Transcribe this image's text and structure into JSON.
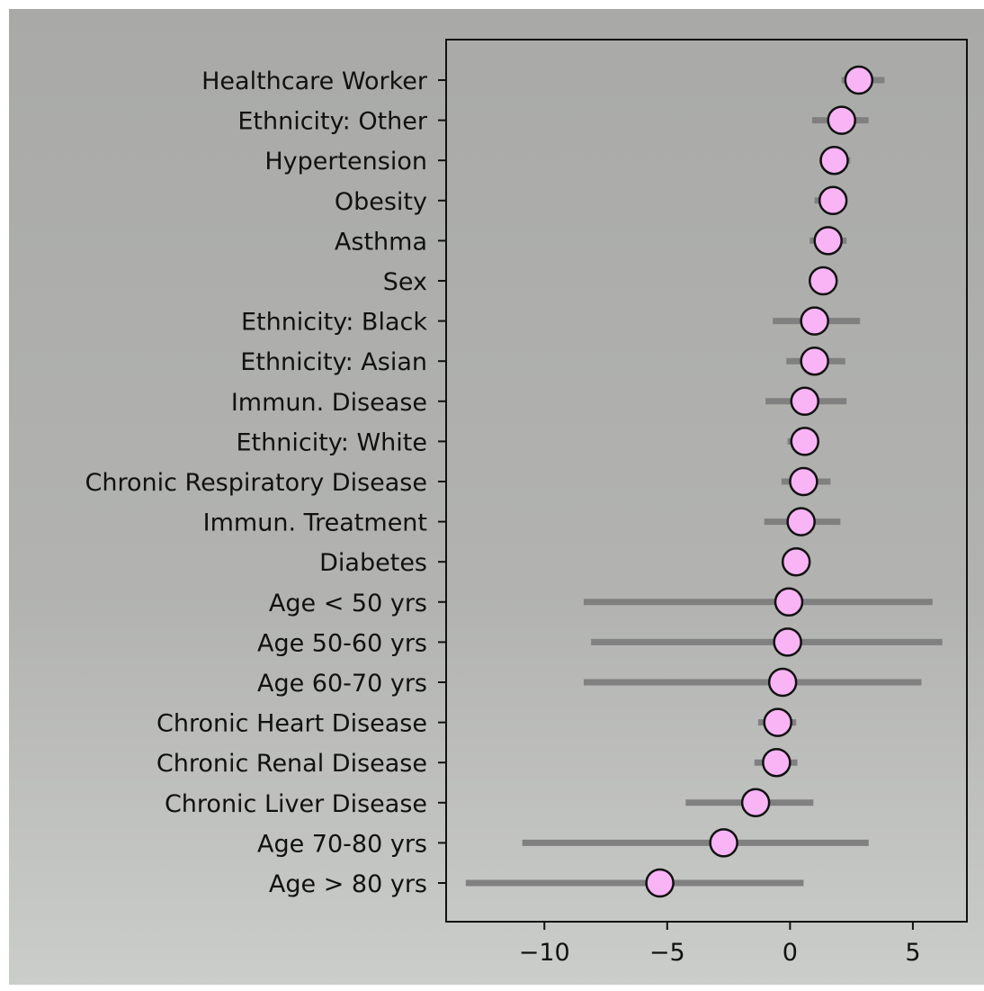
{
  "chart_data": {
    "type": "scatter",
    "title": "",
    "xlabel": "",
    "ylabel": "",
    "xlim": [
      -14,
      7.2
    ],
    "xticks": [
      -10,
      -5,
      0,
      5
    ],
    "xtick_labels": [
      "−10",
      "−5",
      "0",
      "5"
    ],
    "grid": false,
    "legend": "none",
    "colors": {
      "marker_fill": "#f9b4f6",
      "marker_edge": "#111111",
      "error_bar": "#808080",
      "axes_frame": "#111111"
    },
    "categories": [
      "Healthcare Worker",
      "Ethnicity: Other",
      "Hypertension",
      "Obesity",
      "Asthma",
      "Sex",
      "Ethnicity: Black",
      "Ethnicity: Asian",
      "Immun. Disease",
      "Ethnicity: White",
      "Chronic Respiratory Disease",
      "Immun. Treatment",
      "Diabetes",
      "Age < 50 yrs",
      "Age 50-60 yrs",
      "Age 60-70 yrs",
      "Chronic Heart Disease",
      "Chronic Renal Disease",
      "Chronic Liver Disease",
      "Age 70-80 yrs",
      "Age > 80 yrs"
    ],
    "values": [
      2.8,
      2.1,
      1.8,
      1.75,
      1.55,
      1.35,
      1.0,
      1.0,
      0.6,
      0.6,
      0.55,
      0.45,
      0.25,
      -0.05,
      -0.1,
      -0.3,
      -0.5,
      -0.55,
      -1.4,
      -2.7,
      -5.3
    ],
    "ci_low": [
      2.1,
      0.9,
      1.2,
      1.0,
      0.8,
      1.3,
      -0.7,
      -0.15,
      -1.0,
      -0.1,
      -0.35,
      -1.05,
      0.1,
      -8.4,
      -8.1,
      -8.4,
      -1.3,
      -1.45,
      -4.25,
      -10.9,
      -13.2
    ],
    "ci_high": [
      3.85,
      3.2,
      2.45,
      2.3,
      2.3,
      1.4,
      2.85,
      2.25,
      2.3,
      1.15,
      1.65,
      2.05,
      0.35,
      5.8,
      6.2,
      5.35,
      0.25,
      0.3,
      0.95,
      3.2,
      0.55
    ]
  }
}
